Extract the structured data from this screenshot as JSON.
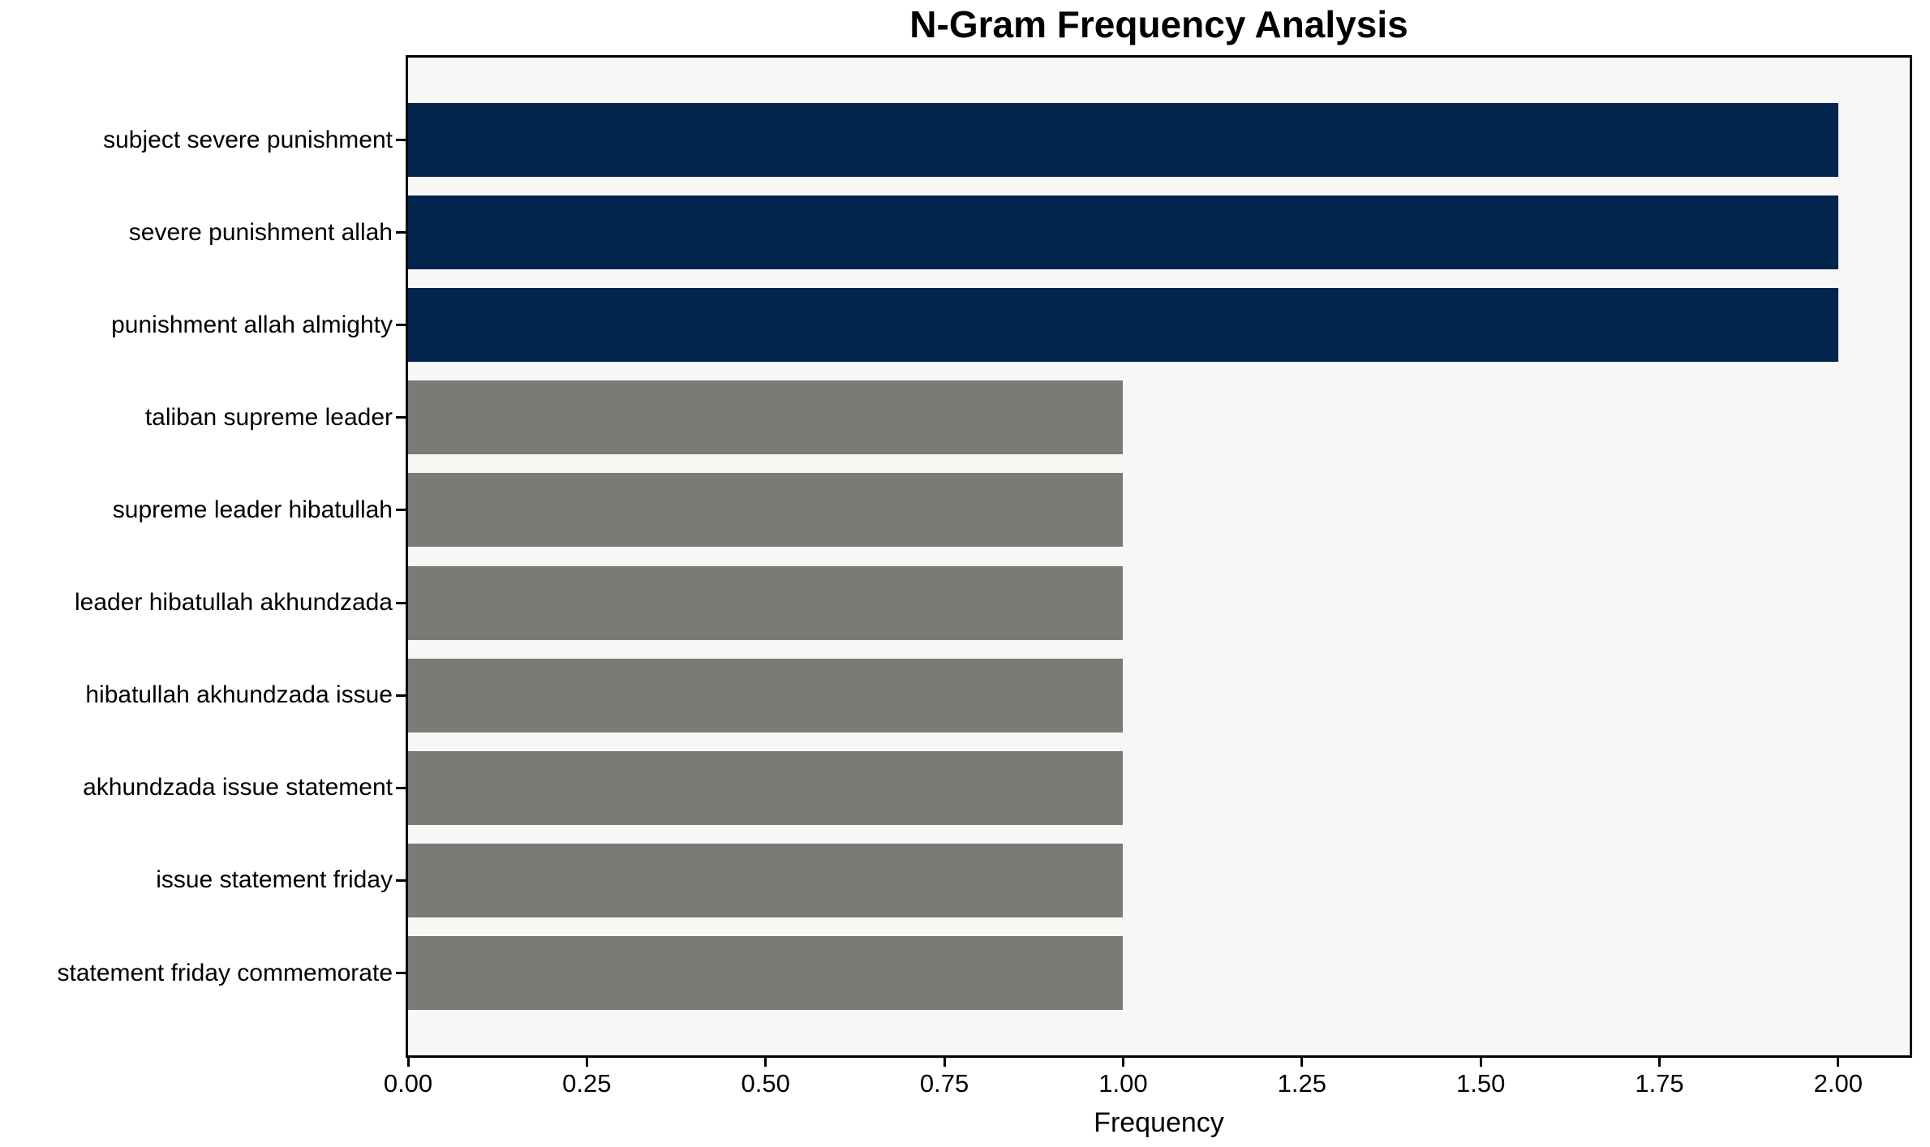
{
  "chart_data": {
    "type": "bar",
    "orientation": "horizontal",
    "title": "N-Gram Frequency Analysis",
    "xlabel": "Frequency",
    "ylabel": "",
    "categories": [
      "subject severe punishment",
      "severe punishment allah",
      "punishment allah almighty",
      "taliban supreme leader",
      "supreme leader hibatullah",
      "leader hibatullah akhundzada",
      "hibatullah akhundzada issue",
      "akhundzada issue statement",
      "issue statement friday",
      "statement friday commemorate"
    ],
    "values": [
      2,
      2,
      2,
      1,
      1,
      1,
      1,
      1,
      1,
      1
    ],
    "bar_colors": [
      "#02254e",
      "#02254e",
      "#02254e",
      "#7a7a77",
      "#7a7a77",
      "#7a7a77",
      "#7a7a77",
      "#7a7a77",
      "#7a7a77",
      "#7a7a77"
    ],
    "xlim": [
      0,
      2.1
    ],
    "x_tick_values": [
      0,
      0.25,
      0.5,
      0.75,
      1.0,
      1.25,
      1.5,
      1.75,
      2.0
    ],
    "x_tick_labels": [
      "0.00",
      "0.25",
      "0.50",
      "0.75",
      "1.00",
      "1.25",
      "1.50",
      "1.75",
      "2.00"
    ],
    "grid": false,
    "legend": null,
    "colors": {
      "highlight": "#02254e",
      "default": "#7a7a77",
      "plot_background": "#f7f7f6",
      "figure_background": "#ffffff",
      "axis": "#000000"
    }
  }
}
